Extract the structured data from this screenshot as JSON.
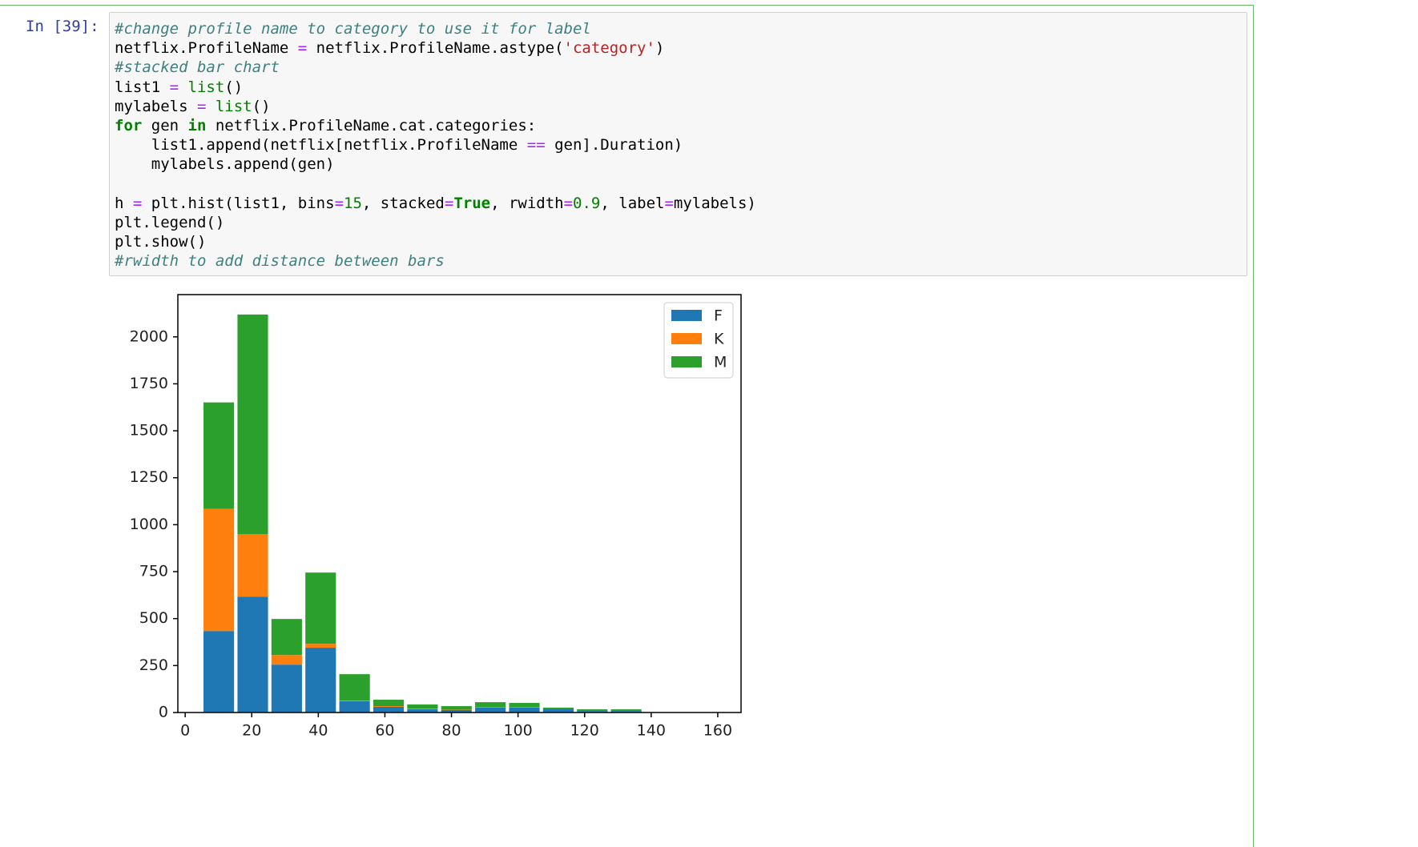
{
  "prompt": "In [39]:",
  "code": [
    [
      {
        "text": "#change profile name to category to use it for label",
        "color": "#408080",
        "italic": true
      }
    ],
    [
      {
        "text": "netflix.ProfileName "
      },
      {
        "text": "=",
        "color": "#aa22ff"
      },
      {
        "text": " netflix.ProfileName.astype("
      },
      {
        "text": "'category'",
        "color": "#ba2121"
      },
      {
        "text": ")"
      }
    ],
    [
      {
        "text": "#stacked bar chart",
        "color": "#408080",
        "italic": true
      }
    ],
    [
      {
        "text": "list1 "
      },
      {
        "text": "=",
        "color": "#aa22ff"
      },
      {
        "text": " "
      },
      {
        "text": "list",
        "color": "#008000"
      },
      {
        "text": "()"
      }
    ],
    [
      {
        "text": "mylabels "
      },
      {
        "text": "=",
        "color": "#aa22ff"
      },
      {
        "text": " "
      },
      {
        "text": "list",
        "color": "#008000"
      },
      {
        "text": "()"
      }
    ],
    [
      {
        "text": "for",
        "color": "#008000",
        "bold": true
      },
      {
        "text": " gen "
      },
      {
        "text": "in",
        "color": "#008000",
        "bold": true
      },
      {
        "text": " netflix.ProfileName.cat.categories:"
      }
    ],
    [
      {
        "text": "    list1.append(netflix[netflix.ProfileName "
      },
      {
        "text": "==",
        "color": "#aa22ff"
      },
      {
        "text": " gen].Duration)"
      }
    ],
    [
      {
        "text": "    mylabels.append(gen)"
      }
    ],
    [],
    [
      {
        "text": "h "
      },
      {
        "text": "=",
        "color": "#aa22ff"
      },
      {
        "text": " plt.hist(list1, bins"
      },
      {
        "text": "=",
        "color": "#aa22ff"
      },
      {
        "text": "15",
        "color": "#008000"
      },
      {
        "text": ", stacked"
      },
      {
        "text": "=",
        "color": "#aa22ff"
      },
      {
        "text": "True",
        "color": "#008000",
        "bold": true
      },
      {
        "text": ", rwidth"
      },
      {
        "text": "=",
        "color": "#aa22ff"
      },
      {
        "text": "0.9",
        "color": "#008000"
      },
      {
        "text": ", label"
      },
      {
        "text": "=",
        "color": "#aa22ff"
      },
      {
        "text": "mylabels)"
      }
    ],
    [
      {
        "text": "plt.legend()"
      }
    ],
    [
      {
        "text": "plt.show()"
      }
    ],
    [
      {
        "text": "#rwidth to add distance between bars",
        "color": "#408080",
        "italic": true
      }
    ]
  ],
  "chart_data": {
    "type": "histogram",
    "bins": [
      5,
      15.2,
      25.4,
      35.6,
      45.8,
      56,
      66.2,
      76.4,
      86.6,
      96.8,
      107,
      117.2,
      127.4,
      137.6,
      147.8,
      158
    ],
    "series": [
      {
        "name": "F",
        "color": "#1f77b4",
        "values": [
          434,
          617,
          255,
          345,
          60,
          30,
          17,
          13,
          26,
          26,
          21,
          8,
          8,
          0,
          0
        ]
      },
      {
        "name": "K",
        "color": "#ff7f0e",
        "values": [
          651,
          332,
          51,
          21,
          4,
          4,
          4,
          2,
          2,
          2,
          0,
          0,
          0,
          0,
          0
        ]
      },
      {
        "name": "M",
        "color": "#2ca02c",
        "values": [
          566,
          1170,
          192,
          379,
          140,
          34,
          22,
          19,
          27,
          23,
          5,
          9,
          9,
          0,
          0
        ]
      }
    ],
    "xlim": [
      -2.2,
      167
    ],
    "ylim": [
      0,
      2225
    ],
    "xticks": [
      0,
      20,
      40,
      60,
      80,
      100,
      120,
      140,
      160
    ],
    "yticks": [
      0,
      250,
      500,
      750,
      1000,
      1250,
      1500,
      1750,
      2000
    ],
    "grid": false,
    "legend": "upper right"
  }
}
